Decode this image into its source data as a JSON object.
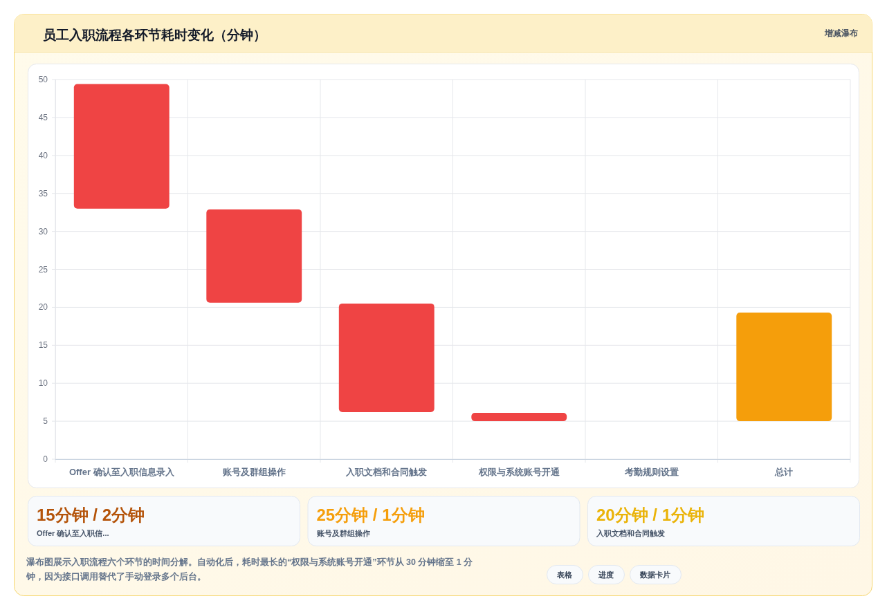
{
  "chart_data": [
    {
      "type": "bar",
      "title": "员工入职流程各环节耗时变化（分钟）",
      "subtitle": "增减瀑布",
      "categories": [
        "Offer 确认至入职信息录入",
        "账号及群组操作",
        "入职文档和合同触发",
        "权限与系统账号开通",
        "考勤规则设置",
        "总计"
      ],
      "values": [
        16.4,
        12.3,
        14.3,
        1.1,
        null,
        14.3
      ],
      "base": [
        33,
        20.6,
        6.2,
        5,
        null,
        5
      ],
      "colors": [
        "#ef4444",
        "#ef4444",
        "#ef4444",
        "#ef4444",
        null,
        "#f59e0b"
      ],
      "ylim": [
        0,
        50
      ],
      "yticks": [
        0,
        5,
        10,
        15,
        20,
        25,
        30,
        35,
        40,
        45,
        50
      ],
      "grid": true,
      "annotations": [
        "瀑布图展示入职流程六个环节的时间分解。自动化后，耗时最长的“权限与系统账号开通”环节从 30 分钟缩至 1 分钟，因为接口调用替代了手动登录多个后台。",
        "表格",
        "进度",
        "数据卡片"
      ]
    },
    {
      "type": "other",
      "annotations": [
        "15分钟 / 2分钟",
        "Offer 确认至入职信...",
        "25分钟 / 1分钟",
        "账号及群组操作",
        "20分钟 / 1分钟",
        "入职文档和合同触发"
      ],
      "colors": [
        "#b45309",
        "#f59e0b",
        "#eab308"
      ]
    }
  ]
}
